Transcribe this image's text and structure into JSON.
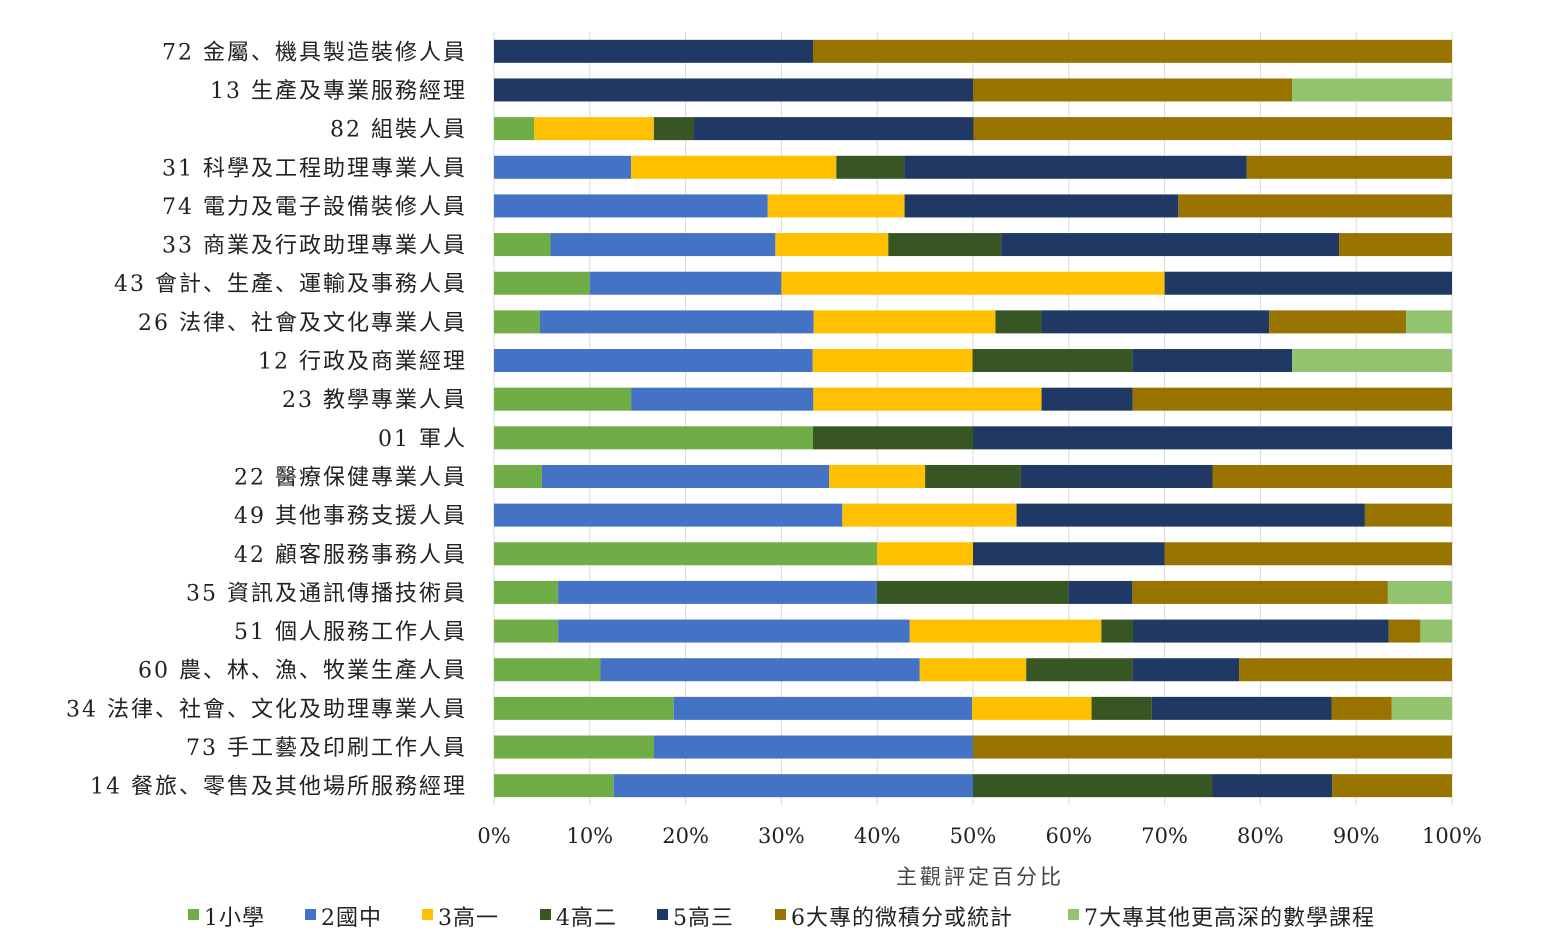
{
  "chart_data": {
    "type": "bar",
    "orientation": "horizontal",
    "stacked": "percent",
    "xlabel": "主觀評定百分比",
    "ylabel": "",
    "xlim": [
      0,
      100
    ],
    "x_ticks": [
      "0%",
      "10%",
      "20%",
      "30%",
      "40%",
      "50%",
      "60%",
      "70%",
      "80%",
      "90%",
      "100%"
    ],
    "grid": "vertical",
    "legend_position": "bottom",
    "categories": [
      "72 金屬、機具製造裝修人員",
      "13 生產及專業服務經理",
      "82 組裝人員",
      "31 科學及工程助理專業人員",
      "74 電力及電子設備裝修人員",
      "33 商業及行政助理專業人員",
      "43 會計、生產、運輸及事務人員",
      "26 法律、社會及文化專業人員",
      "12 行政及商業經理",
      "23 教學專業人員",
      "01 軍人",
      "22 醫療保健專業人員",
      "49 其他事務支援人員",
      "42 顧客服務事務人員",
      "35 資訊及通訊傳播技術員",
      "51 個人服務工作人員",
      "60 農、林、漁、牧業生產人員",
      "34 法律、社會、文化及助理專業人員",
      "73 手工藝及印刷工作人員",
      "14 餐旅、零售及其他場所服務經理"
    ],
    "series": [
      {
        "name": "1小學",
        "color": "#70AD47",
        "values": [
          0,
          0,
          4.2,
          0,
          0,
          5.9,
          10,
          4.8,
          0,
          14.3,
          33.3,
          5,
          0,
          40,
          6.7,
          6.7,
          11.1,
          18.8,
          16.7,
          12.5
        ]
      },
      {
        "name": "2國中",
        "color": "#4472C4",
        "values": [
          0,
          0,
          0,
          14.3,
          28.6,
          23.5,
          20,
          28.6,
          33.3,
          19,
          0,
          30,
          36.4,
          0,
          33.3,
          36.7,
          33.3,
          31.2,
          33.3,
          37.5
        ]
      },
      {
        "name": "3高一",
        "color": "#FFC000",
        "values": [
          0,
          0,
          12.5,
          21.4,
          14.3,
          11.8,
          40,
          19,
          16.7,
          23.8,
          0,
          10,
          18.2,
          10,
          0,
          20,
          11.1,
          12.5,
          0,
          0
        ]
      },
      {
        "name": "4高二",
        "color": "#375623",
        "values": [
          0,
          0,
          4.2,
          7.1,
          0,
          11.8,
          0,
          4.8,
          16.7,
          0,
          16.7,
          10,
          0,
          0,
          20,
          3.3,
          11.1,
          6.3,
          0,
          25
        ]
      },
      {
        "name": "5高三",
        "color": "#203864",
        "values": [
          33.3,
          50,
          29.2,
          35.7,
          28.6,
          35.3,
          30,
          23.8,
          16.7,
          9.5,
          50,
          20,
          36.4,
          20,
          6.7,
          26.7,
          11.1,
          18.8,
          0,
          12.5
        ]
      },
      {
        "name": "6大專的微積分或統計",
        "color": "#997300",
        "values": [
          66.7,
          33.3,
          50,
          21.4,
          28.6,
          11.8,
          0,
          14.3,
          0,
          33.3,
          0,
          25,
          9.1,
          30,
          26.7,
          3.3,
          22.2,
          6.3,
          50,
          12.5
        ]
      },
      {
        "name": "7大專其他更高深的數學課程",
        "color": "#92C46F",
        "values": [
          0,
          16.7,
          0,
          0,
          0,
          0,
          0,
          4.8,
          16.7,
          0,
          0,
          0,
          0,
          0,
          6.7,
          3.3,
          0,
          6.3,
          0,
          0
        ]
      }
    ]
  }
}
